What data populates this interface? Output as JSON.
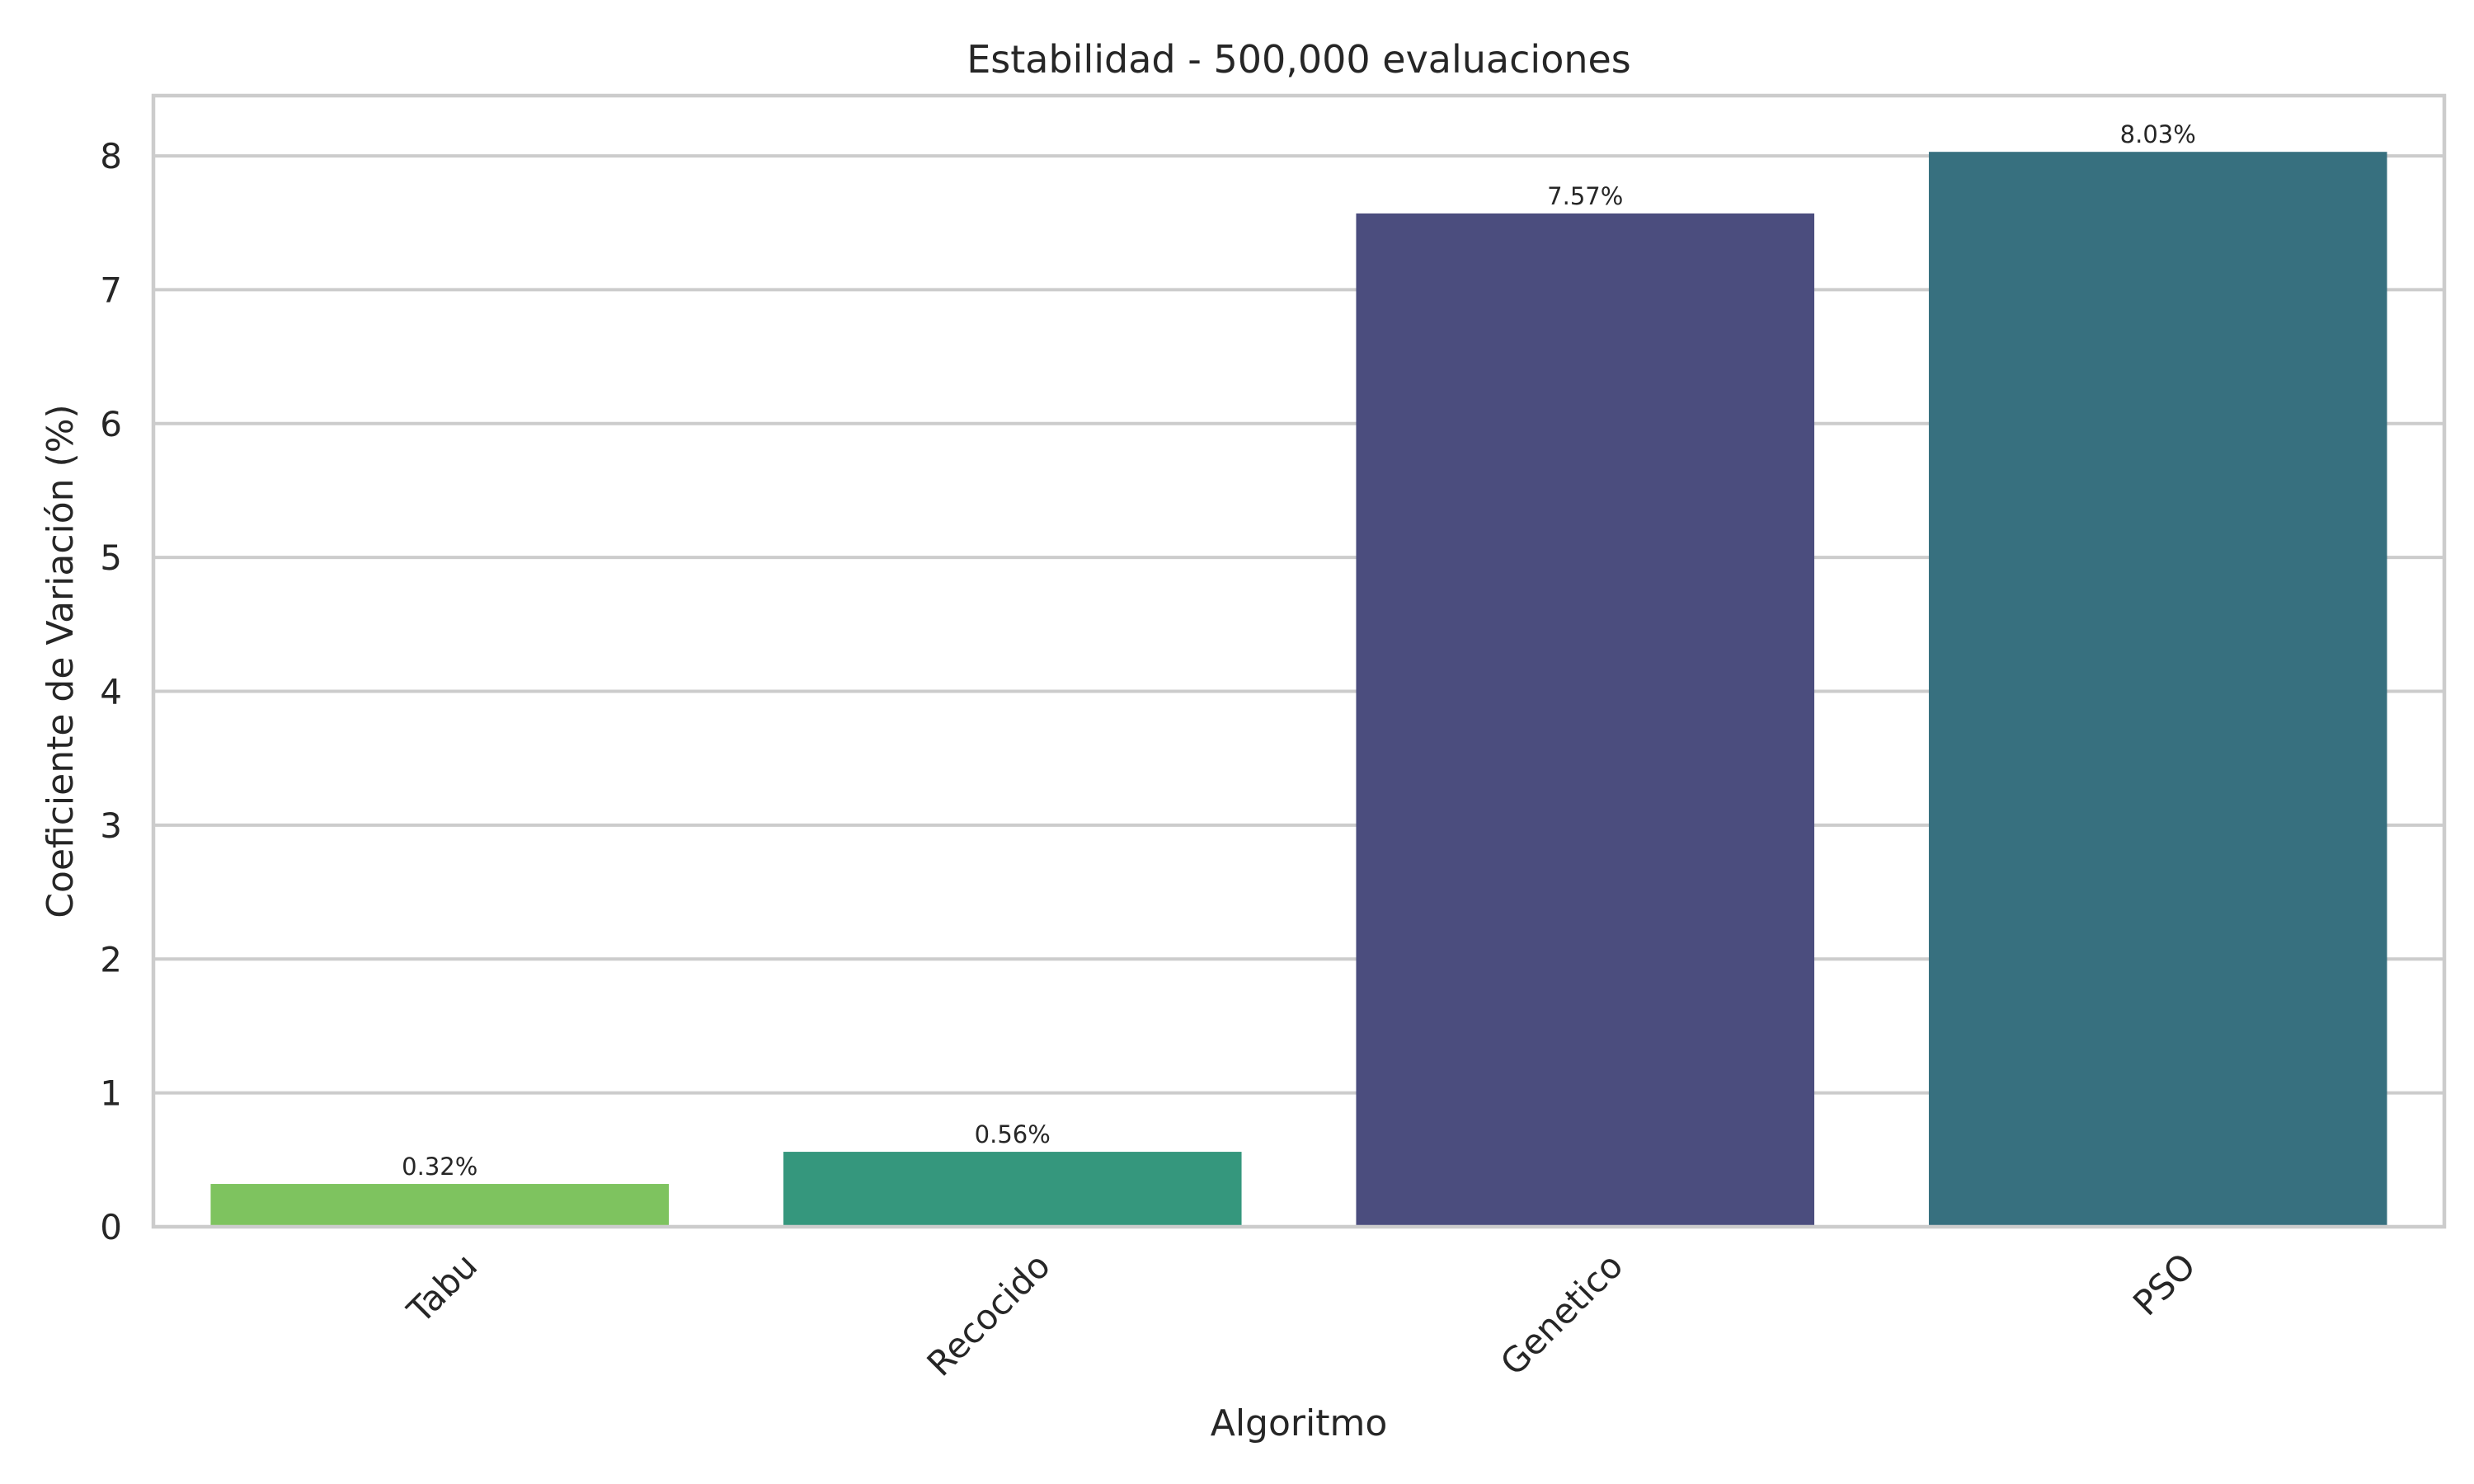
{
  "chart_data": {
    "type": "bar",
    "title": "Estabilidad - 500,000 evaluaciones",
    "xlabel": "Algoritmo",
    "ylabel": "Coeficiente de Variación (%)",
    "categories": [
      "Tabu",
      "Recocido",
      "Genetico",
      "PSO"
    ],
    "values": [
      0.32,
      0.56,
      7.57,
      8.03
    ],
    "data_labels": [
      "0.32%",
      "0.56%",
      "7.57%",
      "8.03%"
    ],
    "bar_colors": [
      "#7ec35f",
      "#35977d",
      "#4b4d7e",
      "#37707f"
    ],
    "ylim": [
      0,
      8.45
    ],
    "yticks": [
      0,
      1,
      2,
      3,
      4,
      5,
      6,
      7,
      8
    ],
    "grid": true,
    "legend": "none"
  }
}
